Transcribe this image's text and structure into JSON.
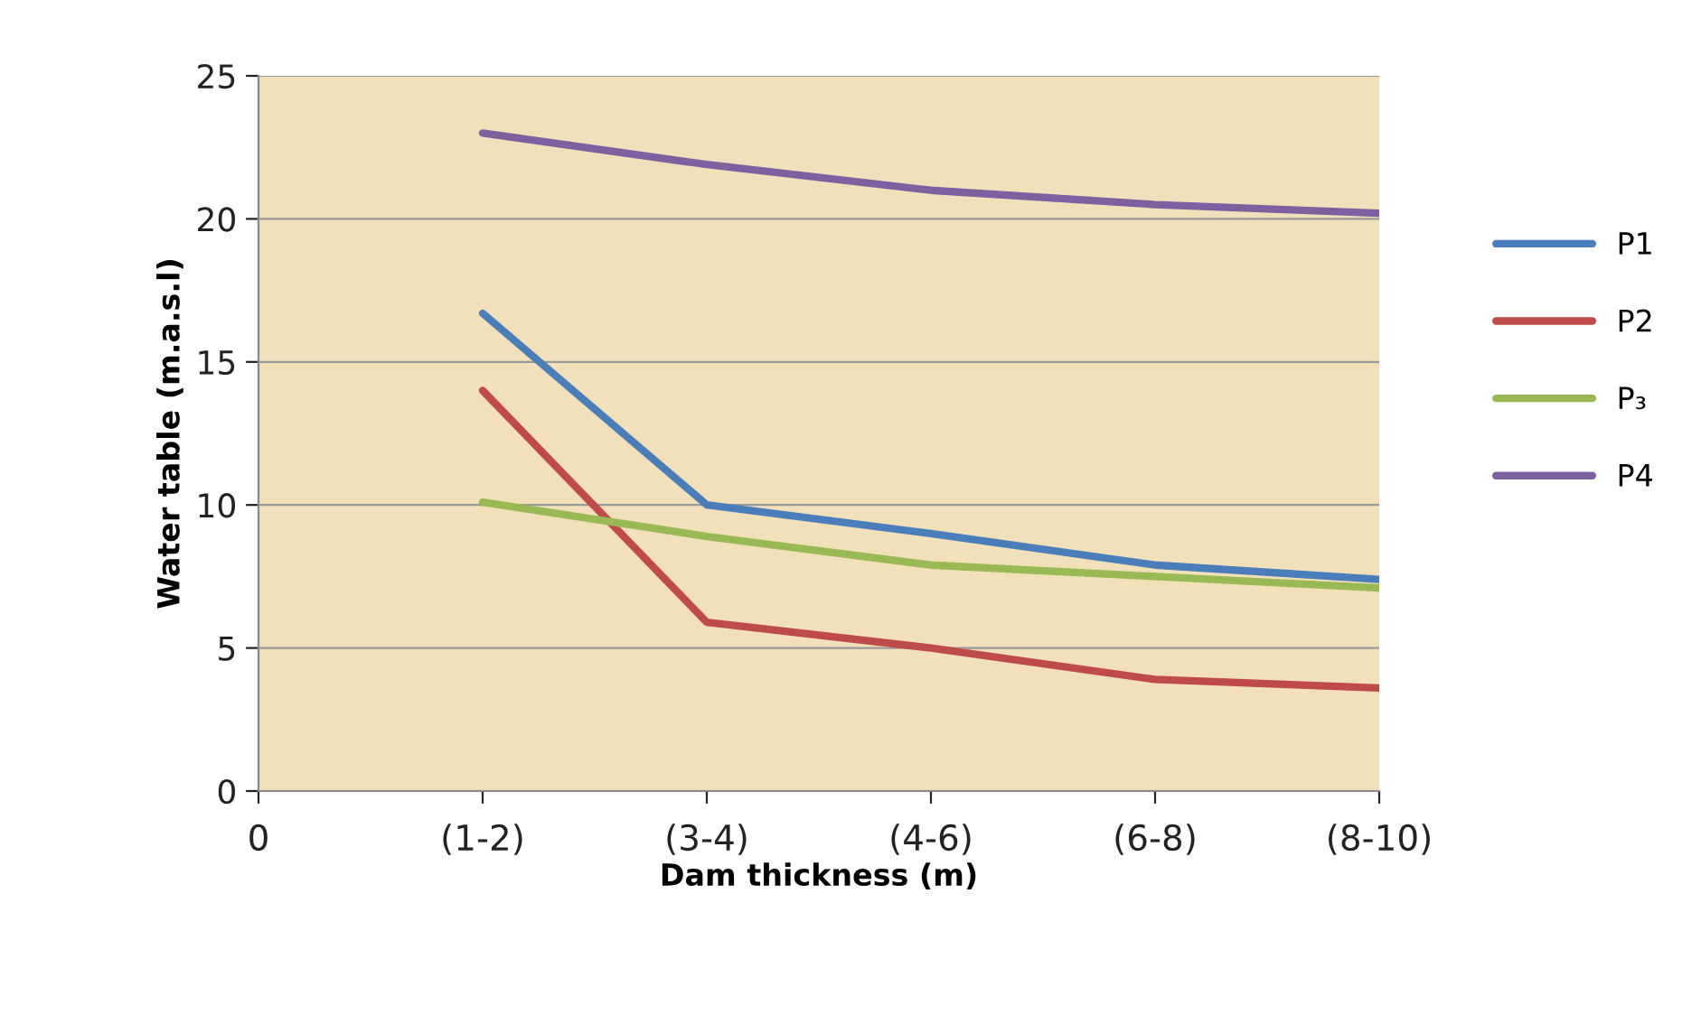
{
  "chart_data": {
    "type": "line",
    "xlabel": "Dam thickness (m)",
    "ylabel": "Water table (m.a.s.l)",
    "categories": [
      "0",
      "(1-2)",
      "(3-4)",
      "(4-6)",
      "(6-8)",
      "(8-10)"
    ],
    "series": [
      {
        "name": "P1",
        "color": "#4a7ebb",
        "values": [
          null,
          16.7,
          10,
          9,
          7.9,
          7.4
        ]
      },
      {
        "name": "P2",
        "color": "#be4b48",
        "values": [
          null,
          14,
          5.9,
          5,
          3.9,
          3.6
        ]
      },
      {
        "name": "P₃",
        "color": "#98b954",
        "values": [
          null,
          10.1,
          8.9,
          7.9,
          7.5,
          7.1
        ]
      },
      {
        "name": "P4",
        "color": "#7d60a0",
        "values": [
          null,
          23,
          21.9,
          21,
          20.5,
          20.2
        ]
      }
    ],
    "ylim": [
      0,
      25
    ],
    "yticks": [
      0,
      5,
      10,
      15,
      20,
      25
    ],
    "grid": "y",
    "legend": "right",
    "marker": "none",
    "line_style": "solid"
  }
}
